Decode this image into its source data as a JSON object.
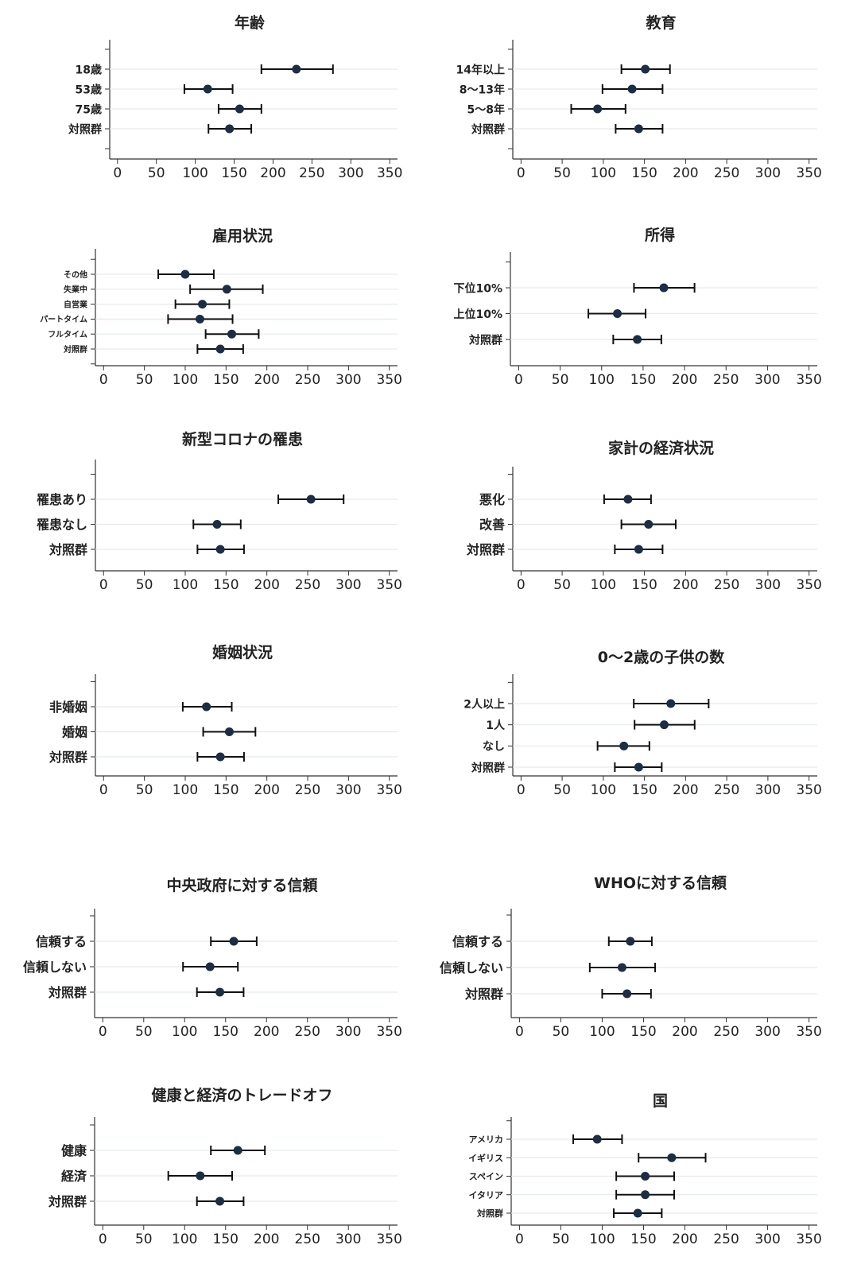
{
  "chart_data": [
    {
      "type": "errorbar",
      "title": "年齢",
      "categories": [
        "18歳",
        "53歳",
        "75歳",
        "対照群"
      ],
      "points": [
        {
          "label": "18歳",
          "value": 230,
          "low": 185,
          "high": 277
        },
        {
          "label": "53歳",
          "value": 116,
          "low": 86,
          "high": 148
        },
        {
          "label": "75歳",
          "value": 157,
          "low": 130,
          "high": 185
        },
        {
          "label": "対照群",
          "value": 144,
          "low": 117,
          "high": 172
        }
      ],
      "xticks": [
        0,
        50,
        100,
        150,
        200,
        250,
        300,
        350
      ],
      "xlim": [
        -10,
        360
      ],
      "grid": true
    },
    {
      "type": "errorbar",
      "title": "教育",
      "categories": [
        "14年以上",
        "8～13年",
        "5～8年",
        "対照群"
      ],
      "points": [
        {
          "label": "14年以上",
          "value": 151,
          "low": 122,
          "high": 181
        },
        {
          "label": "8～13年",
          "value": 135,
          "low": 99,
          "high": 172
        },
        {
          "label": "5～8年",
          "value": 93,
          "low": 61,
          "high": 127
        },
        {
          "label": "対照群",
          "value": 143,
          "low": 115,
          "high": 172
        }
      ],
      "xticks": [
        0,
        50,
        100,
        150,
        200,
        250,
        300,
        350
      ],
      "xlim": [
        -10,
        360
      ],
      "grid": true
    },
    {
      "type": "errorbar",
      "title": "雇用状況",
      "categories": [
        "その他",
        "失業中",
        "自営業",
        "パートタイム",
        "フルタイム",
        "対照群"
      ],
      "points": [
        {
          "label": "その他",
          "value": 100,
          "low": 67,
          "high": 135
        },
        {
          "label": "失業中",
          "value": 151,
          "low": 106,
          "high": 195
        },
        {
          "label": "自営業",
          "value": 121,
          "low": 88,
          "high": 154
        },
        {
          "label": "パートタイム",
          "value": 118,
          "low": 79,
          "high": 158
        },
        {
          "label": "フルタイム",
          "value": 157,
          "low": 125,
          "high": 190
        },
        {
          "label": "対照群",
          "value": 143,
          "low": 115,
          "high": 171
        }
      ],
      "xticks": [
        0,
        50,
        100,
        150,
        200,
        250,
        300,
        350
      ],
      "xlim": [
        -10,
        360
      ],
      "grid": true
    },
    {
      "type": "errorbar",
      "title": "所得",
      "categories": [
        "下位10%",
        "上位10%",
        "対照群"
      ],
      "points": [
        {
          "label": "下位10%",
          "value": 175,
          "low": 139,
          "high": 212
        },
        {
          "label": "上位10%",
          "value": 119,
          "low": 84,
          "high": 153
        },
        {
          "label": "対照群",
          "value": 143,
          "low": 114,
          "high": 172
        }
      ],
      "xticks": [
        0,
        50,
        100,
        150,
        200,
        250,
        300,
        350
      ],
      "xlim": [
        -10,
        360
      ],
      "grid": true
    },
    {
      "type": "errorbar",
      "title": "新型コロナの罹患",
      "categories": [
        "罹患あり",
        "罹患なし",
        "対照群"
      ],
      "points": [
        {
          "label": "罹患あり",
          "value": 254,
          "low": 214,
          "high": 294
        },
        {
          "label": "罹患なし",
          "value": 139,
          "low": 110,
          "high": 168
        },
        {
          "label": "対照群",
          "value": 143,
          "low": 115,
          "high": 172
        }
      ],
      "xticks": [
        0,
        50,
        100,
        150,
        200,
        250,
        300,
        350
      ],
      "xlim": [
        -10,
        360
      ],
      "grid": true
    },
    {
      "type": "errorbar",
      "title": "家計の経済状況",
      "categories": [
        "悪化",
        "改善",
        "対照群"
      ],
      "points": [
        {
          "label": "悪化",
          "value": 130,
          "low": 101,
          "high": 158
        },
        {
          "label": "改善",
          "value": 155,
          "low": 122,
          "high": 188
        },
        {
          "label": "対照群",
          "value": 143,
          "low": 114,
          "high": 172
        }
      ],
      "xticks": [
        0,
        50,
        100,
        150,
        200,
        250,
        300,
        350
      ],
      "xlim": [
        -10,
        360
      ],
      "grid": true
    },
    {
      "type": "errorbar",
      "title": "婚姻状況",
      "categories": [
        "非婚姻",
        "婚姻",
        "対照群"
      ],
      "points": [
        {
          "label": "非婚姻",
          "value": 126,
          "low": 97,
          "high": 157
        },
        {
          "label": "婚姻",
          "value": 154,
          "low": 122,
          "high": 186
        },
        {
          "label": "対照群",
          "value": 143,
          "low": 115,
          "high": 172
        }
      ],
      "xticks": [
        0,
        50,
        100,
        150,
        200,
        250,
        300,
        350
      ],
      "xlim": [
        -10,
        360
      ],
      "grid": true
    },
    {
      "type": "errorbar",
      "title": "0～2歳の子供の数",
      "categories": [
        "2人以上",
        "1人",
        "なし",
        "対照群"
      ],
      "points": [
        {
          "label": "2人以上",
          "value": 182,
          "low": 137,
          "high": 228
        },
        {
          "label": "1人",
          "value": 174,
          "low": 138,
          "high": 211
        },
        {
          "label": "なし",
          "value": 125,
          "low": 93,
          "high": 156
        },
        {
          "label": "対照群",
          "value": 143,
          "low": 114,
          "high": 171
        }
      ],
      "xticks": [
        0,
        50,
        100,
        150,
        200,
        250,
        300,
        350
      ],
      "xlim": [
        -10,
        360
      ],
      "grid": true
    },
    {
      "type": "errorbar",
      "title": "中央政府に対する信頼",
      "categories": [
        "信頼する",
        "信頼しない",
        "対照群"
      ],
      "points": [
        {
          "label": "信頼する",
          "value": 160,
          "low": 132,
          "high": 188
        },
        {
          "label": "信頼しない",
          "value": 131,
          "low": 98,
          "high": 165
        },
        {
          "label": "対照群",
          "value": 143,
          "low": 115,
          "high": 172
        }
      ],
      "xticks": [
        0,
        50,
        100,
        150,
        200,
        250,
        300,
        350
      ],
      "xlim": [
        -10,
        360
      ],
      "grid": true
    },
    {
      "type": "errorbar",
      "title": "WHOに対する信頼",
      "categories": [
        "信頼する",
        "信頼しない",
        "対照群"
      ],
      "points": [
        {
          "label": "信頼する",
          "value": 134,
          "low": 108,
          "high": 160
        },
        {
          "label": "信頼しない",
          "value": 124,
          "low": 85,
          "high": 164
        },
        {
          "label": "対照群",
          "value": 130,
          "low": 100,
          "high": 159
        }
      ],
      "xticks": [
        0,
        50,
        100,
        150,
        200,
        250,
        300,
        350
      ],
      "xlim": [
        -10,
        360
      ],
      "grid": true
    },
    {
      "type": "errorbar",
      "title": "健康と経済のトレードオフ",
      "categories": [
        "健康",
        "経済",
        "対照群"
      ],
      "points": [
        {
          "label": "健康",
          "value": 165,
          "low": 132,
          "high": 198
        },
        {
          "label": "経済",
          "value": 119,
          "low": 80,
          "high": 158
        },
        {
          "label": "対照群",
          "value": 143,
          "low": 115,
          "high": 172
        }
      ],
      "xticks": [
        0,
        50,
        100,
        150,
        200,
        250,
        300,
        350
      ],
      "xlim": [
        -10,
        360
      ],
      "grid": true
    },
    {
      "type": "errorbar",
      "title": "国",
      "categories": [
        "アメリカ",
        "イギリス",
        "スペイン",
        "イタリア",
        "対照群"
      ],
      "points": [
        {
          "label": "アメリカ",
          "value": 94,
          "low": 65,
          "high": 124
        },
        {
          "label": "イギリス",
          "value": 184,
          "low": 144,
          "high": 225
        },
        {
          "label": "スペイン",
          "value": 152,
          "low": 117,
          "high": 187
        },
        {
          "label": "イタリア",
          "value": 152,
          "low": 117,
          "high": 187
        },
        {
          "label": "対照群",
          "value": 143,
          "low": 114,
          "high": 172
        }
      ],
      "xticks": [
        0,
        50,
        100,
        150,
        200,
        250,
        300,
        350
      ],
      "xlim": [
        -10,
        360
      ],
      "grid": true
    }
  ]
}
